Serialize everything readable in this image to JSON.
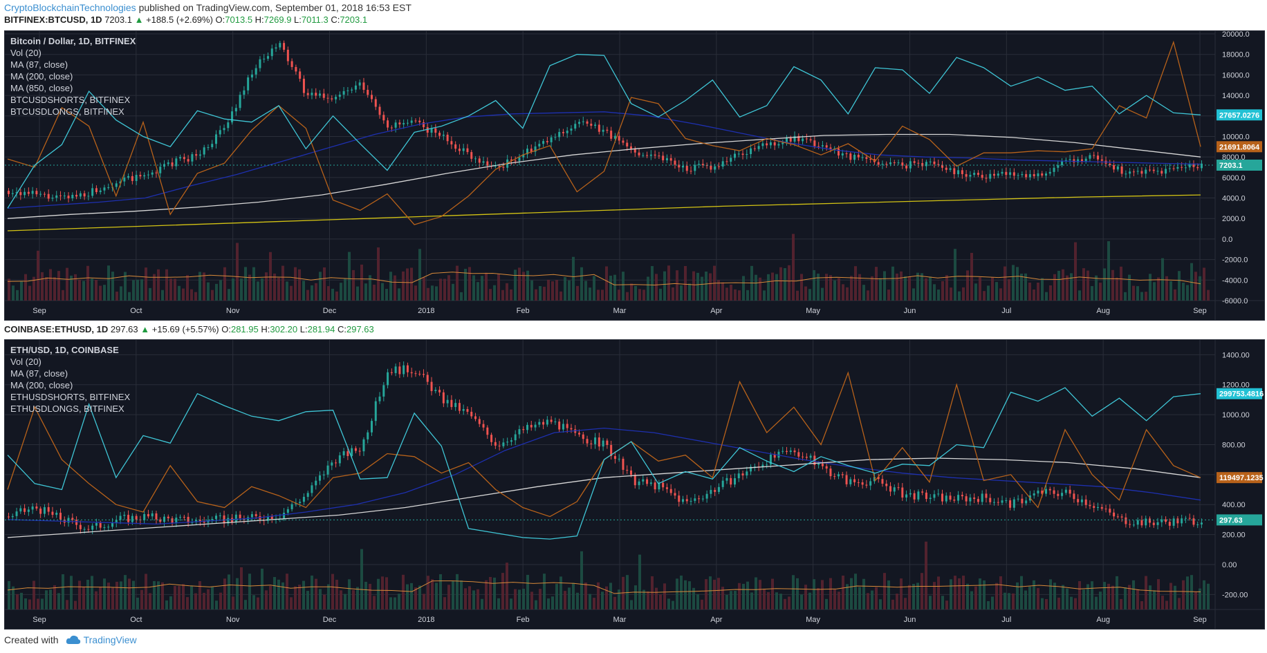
{
  "header": {
    "author": "CryptoBlockchainTechnologies",
    "published": "published on TradingView.com, September 01, 2018 16:53 EST"
  },
  "footer": {
    "created_with": "Created with",
    "brand": "TradingView",
    "logo_icon": "tradingview-cloud-icon"
  },
  "colors": {
    "bg": "#131722",
    "grid": "#2a2e39",
    "axis_text": "#d1d4dc",
    "up": "#26a69a",
    "down": "#ef5350",
    "shorts": "#3fc6d6",
    "longs": "#b8621a",
    "ma87": "#1e30b0",
    "ma200": "#d8d8d8",
    "ma850": "#d4c414",
    "vol_ma": "#d88a3a"
  },
  "charts": [
    {
      "ticker": {
        "symbol": "BITFINEX:BTCUSD, 1D",
        "price": "7203.1",
        "arrow": "▲",
        "change": "+188.5 (+2.69%)",
        "o": "7013.5",
        "h": "7269.9",
        "l": "7011.3",
        "c": "7203.1"
      },
      "legend": [
        "Bitcoin / Dollar, 1D, BITFINEX",
        "Vol (20)",
        "MA (87, close)",
        "MA (200, close)",
        "MA (850, close)",
        "BTCUSDSHORTS, BITFINEX",
        "BTCUSDLONGS, BITFINEX"
      ],
      "price_tag": "7203.1",
      "shorts_tag": "27657.0276",
      "longs_tag": "21691.8064"
    },
    {
      "ticker": {
        "symbol": "COINBASE:ETHUSD, 1D",
        "price": "297.63",
        "arrow": "▲",
        "change": "+15.69 (+5.57%)",
        "o": "281.95",
        "h": "302.20",
        "l": "281.94",
        "c": "297.63"
      },
      "legend": [
        "ETH/USD, 1D, COINBASE",
        "Vol (20)",
        "MA (87, close)",
        "MA (200, close)",
        "ETHUSDSHORTS, BITFINEX",
        "ETHUSDLONGS, BITFINEX"
      ],
      "price_tag": "297.63",
      "shorts_tag": "299753.4816",
      "longs_tag": "119497.1235"
    }
  ],
  "chart_data": [
    {
      "type": "line",
      "title": "Bitcoin / Dollar, 1D, BITFINEX",
      "x_ticks": [
        "Sep",
        "Oct",
        "Nov",
        "Dec",
        "2018",
        "Feb",
        "Mar",
        "Apr",
        "May",
        "Jun",
        "Jul",
        "Aug",
        "Sep"
      ],
      "y_ticks": [
        "20000.0",
        "18000.0",
        "16000.0",
        "14000.0",
        "12000.0",
        "10000.0",
        "8000.0",
        "6000.0",
        "4000.0",
        "2000.0",
        "0.0",
        "-2000.0",
        "-4000.0",
        "-6000.0"
      ],
      "ylim": [
        -6000,
        20000
      ],
      "last_price": 7203.1,
      "series": [
        {
          "name": "BTCUSD",
          "values": [
            4700,
            4300,
            3900,
            4600,
            5600,
            6100,
            7400,
            8200,
            10900,
            16500,
            19000,
            14000,
            13800,
            15000,
            11000,
            11300,
            10000,
            8200,
            6900,
            8300,
            9700,
            11400,
            10500,
            8600,
            8100,
            6900,
            7100,
            8300,
            9300,
            9700,
            9100,
            8100,
            7500,
            7200,
            7500,
            6500,
            6200,
            6400,
            6300,
            7400,
            8200,
            6600,
            6400,
            6800,
            7203
          ]
        },
        {
          "name": "BTCUSDSHORTS, BITFINEX",
          "values": [
            3000,
            7200,
            9200,
            14400,
            11600,
            10000,
            9000,
            12500,
            11700,
            11400,
            13000,
            8800,
            12000,
            9300,
            6700,
            10400,
            11000,
            12000,
            13500,
            10800,
            16900,
            18000,
            17900,
            13200,
            11900,
            13500,
            15500,
            11900,
            13000,
            16800,
            15500,
            12200,
            16700,
            16500,
            14200,
            17700,
            16700,
            14900,
            15800,
            14500,
            14900,
            12200,
            14000,
            12300,
            12100
          ]
        },
        {
          "name": "BTCUSDLONGS, BITFINEX",
          "values": [
            7800,
            7000,
            12800,
            11000,
            4200,
            11400,
            2400,
            6400,
            7400,
            10600,
            13000,
            10800,
            3800,
            2800,
            4400,
            1400,
            2200,
            4200,
            6800,
            8200,
            9100,
            4600,
            6600,
            13800,
            13200,
            9800,
            9100,
            8600,
            9800,
            9200,
            8200,
            9300,
            7600,
            11000,
            9700,
            7100,
            8400,
            8400,
            8600,
            8500,
            8800,
            13000,
            11800,
            19200,
            9000
          ]
        },
        {
          "name": "MA (87, close)",
          "values": [
            3000,
            3300,
            3600,
            4000,
            5200,
            6300,
            7600,
            8900,
            10200,
            11200,
            11900,
            12200,
            12300,
            12400,
            12000,
            11200,
            10300,
            9400,
            8700,
            8200,
            8000,
            7900,
            7700,
            7600,
            7500,
            7400,
            7300
          ]
        },
        {
          "name": "MA (200, close)",
          "values": [
            2000,
            2400,
            2700,
            3100,
            3600,
            4300,
            5300,
            6400,
            7400,
            8200,
            8800,
            9300,
            9700,
            10100,
            10200,
            10200,
            9900,
            9400,
            8700,
            8000
          ]
        },
        {
          "name": "MA (850, close)",
          "values": [
            800,
            1200,
            1600,
            2000,
            2400,
            2800,
            3200,
            3500,
            3800,
            4100,
            4300
          ]
        }
      ]
    },
    {
      "type": "line",
      "title": "ETH/USD, 1D, COINBASE",
      "x_ticks": [
        "Sep",
        "Oct",
        "Nov",
        "Dec",
        "2018",
        "Feb",
        "Mar",
        "Apr",
        "May",
        "Jun",
        "Jul",
        "Aug",
        "Sep"
      ],
      "y_ticks": [
        "1400.00",
        "1200.00",
        "1000.00",
        "800.00",
        "600.00",
        "400.00",
        "200.00",
        "0.00",
        "-200.00"
      ],
      "ylim": [
        -300,
        1480
      ],
      "last_price": 297.63,
      "series": [
        {
          "name": "ETHUSD",
          "values": [
            320,
            380,
            300,
            240,
            300,
            320,
            300,
            290,
            300,
            310,
            330,
            470,
            700,
            780,
            1300,
            1300,
            1100,
            1000,
            800,
            900,
            960,
            850,
            800,
            560,
            520,
            410,
            500,
            600,
            700,
            760,
            650,
            550,
            560,
            470,
            450,
            440,
            450,
            400,
            480,
            480,
            400,
            300,
            280,
            290,
            297
          ]
        },
        {
          "name": "ETHUSDSHORTS, BITFINEX",
          "values": [
            730,
            540,
            500,
            1070,
            580,
            860,
            810,
            1140,
            1060,
            990,
            960,
            1020,
            1030,
            570,
            580,
            1010,
            790,
            240,
            210,
            180,
            170,
            190,
            700,
            820,
            540,
            620,
            570,
            780,
            690,
            620,
            720,
            660,
            610,
            670,
            660,
            800,
            780,
            1150,
            1090,
            1180,
            990,
            1110,
            960,
            1120,
            1140
          ]
        },
        {
          "name": "ETHUSDLONGS, BITFINEX",
          "values": [
            500,
            1050,
            700,
            540,
            400,
            350,
            660,
            420,
            380,
            520,
            460,
            380,
            580,
            610,
            740,
            720,
            610,
            680,
            500,
            380,
            320,
            420,
            700,
            820,
            690,
            730,
            580,
            1220,
            880,
            1050,
            800,
            1280,
            560,
            780,
            550,
            1200,
            560,
            600,
            380,
            900,
            600,
            430,
            900,
            660,
            580
          ]
        },
        {
          "name": "MA (87, close)",
          "values": [
            300,
            290,
            280,
            270,
            290,
            310,
            350,
            400,
            480,
            600,
            760,
            880,
            910,
            880,
            820,
            760,
            700,
            650,
            610,
            580,
            560,
            540,
            520,
            480,
            430
          ]
        },
        {
          "name": "MA (200, close)",
          "values": [
            180,
            210,
            240,
            270,
            300,
            330,
            380,
            450,
            520,
            580,
            610,
            640,
            670,
            700,
            710,
            700,
            680,
            640,
            580
          ]
        }
      ]
    }
  ]
}
